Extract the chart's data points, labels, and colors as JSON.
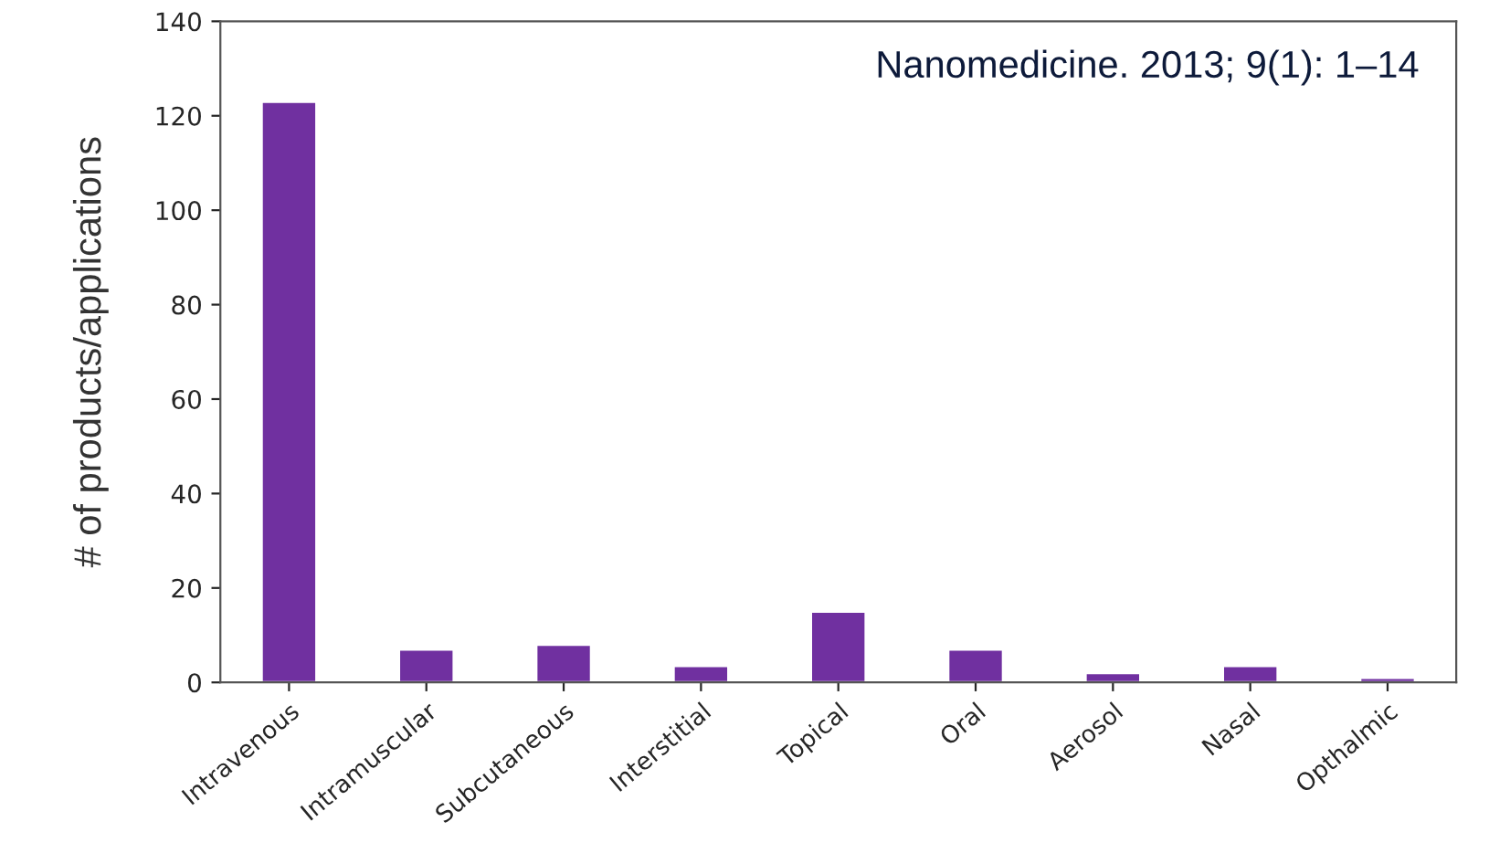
{
  "chart_data": {
    "type": "bar",
    "ylabel": "# of products/applications",
    "categories": [
      "Intravenous",
      "Intramuscular",
      "Subcutaneous",
      "Interstitial",
      "Topical",
      "Oral",
      "Aerosol",
      "Nasal",
      "Opthalmic"
    ],
    "values": [
      123,
      7,
      8,
      3.5,
      15,
      7,
      2,
      3.5,
      1
    ],
    "color": "#7030a0",
    "ylim": [
      0,
      140
    ],
    "yticks": [
      0,
      20,
      40,
      60,
      80,
      100,
      120,
      140
    ],
    "grid": false,
    "annotations": [
      "Nanomedicine. 2013; 9(1): 1–14"
    ]
  }
}
